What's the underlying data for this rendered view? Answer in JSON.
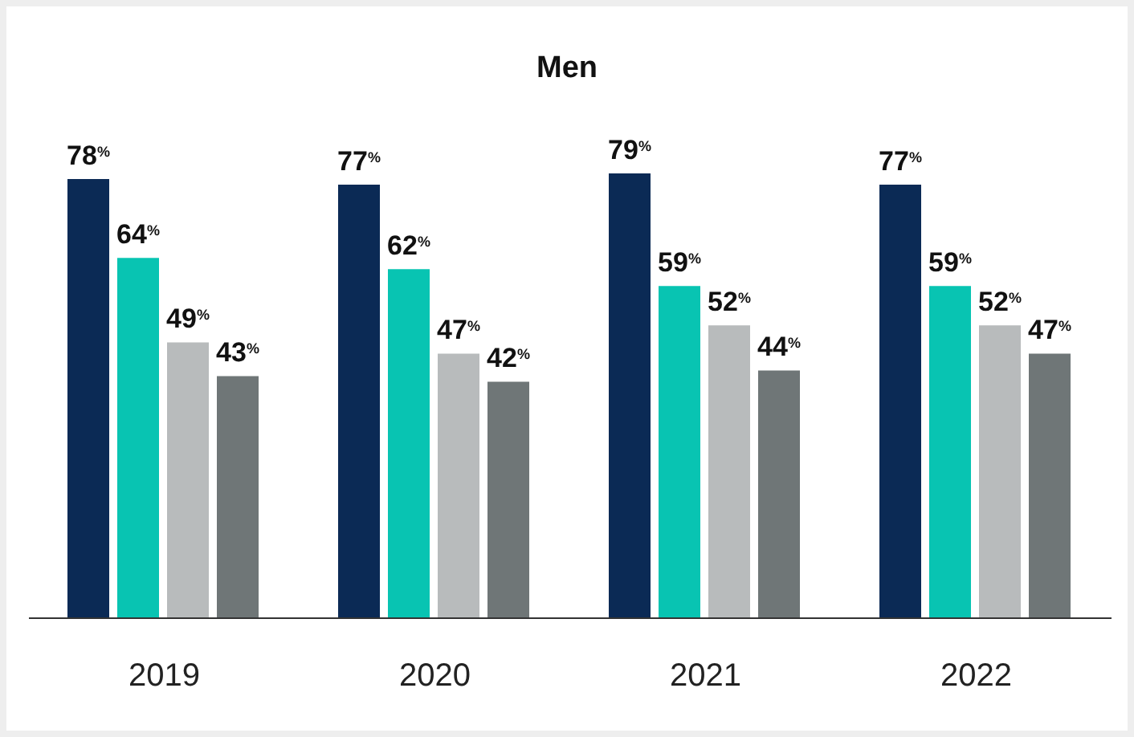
{
  "chart_data": {
    "type": "bar",
    "title": "Men",
    "categories": [
      "2019",
      "2020",
      "2021",
      "2022"
    ],
    "series": [
      {
        "color": "#0b2a55",
        "values": [
          78,
          77,
          79,
          77
        ],
        "value_labels": [
          "78$^{%}$",
          "77$^{%}$",
          "79$^{%}$",
          "77$^{%}$"
        ]
      },
      {
        "color": "#08c4b2",
        "values": [
          64,
          62,
          59,
          59
        ],
        "value_labels": [
          "64$^{%}$",
          "62$^{%}$",
          "59$^{%}$",
          "59$^{%}$"
        ]
      },
      {
        "color": "#b8bbbc",
        "values": [
          49,
          47,
          52,
          52
        ],
        "value_labels": [
          "49$^{%}$",
          "47$^{%}$",
          "52$^{%}$",
          "52$^{%}$"
        ]
      },
      {
        "color": "#6f7677",
        "values": [
          43,
          42,
          44,
          47
        ],
        "value_labels": [
          "43$^{%}$",
          "42$^{%}$",
          "44$^{%}$",
          "47$^{%}$"
        ]
      }
    ],
    "grid": false,
    "legend": false
  }
}
